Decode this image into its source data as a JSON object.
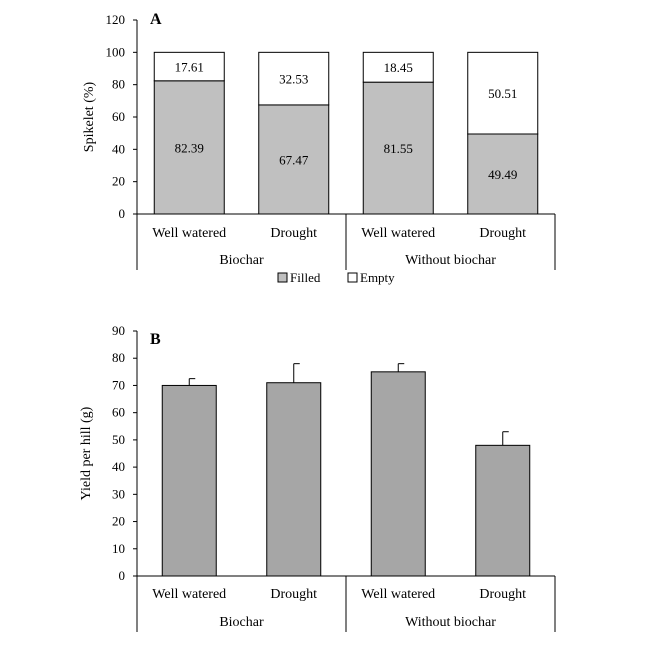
{
  "chart_data": [
    {
      "panel": "A",
      "type": "bar",
      "stacked": true,
      "ylabel": "Spikelet (%)",
      "ylim": [
        0,
        120
      ],
      "yticks": [
        0,
        20,
        40,
        60,
        80,
        100,
        120
      ],
      "categories": [
        "Well watered",
        "Drought",
        "Well watered",
        "Drought"
      ],
      "groups": [
        {
          "label": "Biochar",
          "span": [
            0,
            1
          ]
        },
        {
          "label": "Without biochar",
          "span": [
            2,
            3
          ]
        }
      ],
      "series": [
        {
          "name": "Filled",
          "color": "#c0c0c0",
          "values": [
            82.39,
            67.47,
            81.55,
            49.49
          ],
          "labels": [
            "82.39",
            "67.47",
            "81.55",
            "49.49"
          ]
        },
        {
          "name": "Empty",
          "color": "#ffffff",
          "values": [
            17.61,
            32.53,
            18.45,
            50.51
          ],
          "labels": [
            "17.61",
            "32.53",
            "18.45",
            "50.51"
          ]
        }
      ],
      "legend": {
        "position": "bottom",
        "items": [
          "Filled",
          "Empty"
        ]
      }
    },
    {
      "panel": "B",
      "type": "bar",
      "ylabel": "Yield per hill (g)",
      "ylim": [
        0,
        90
      ],
      "yticks": [
        0,
        10,
        20,
        30,
        40,
        50,
        60,
        70,
        80,
        90
      ],
      "categories": [
        "Well watered",
        "Drought",
        "Well watered",
        "Drought"
      ],
      "groups": [
        {
          "label": "Biochar",
          "span": [
            0,
            1
          ]
        },
        {
          "label": "Without biochar",
          "span": [
            2,
            3
          ]
        }
      ],
      "series": [
        {
          "name": "Yield",
          "color": "#a6a6a6",
          "values": [
            70,
            71,
            75,
            48
          ],
          "errors": [
            2.5,
            7,
            3,
            5
          ]
        }
      ]
    }
  ]
}
